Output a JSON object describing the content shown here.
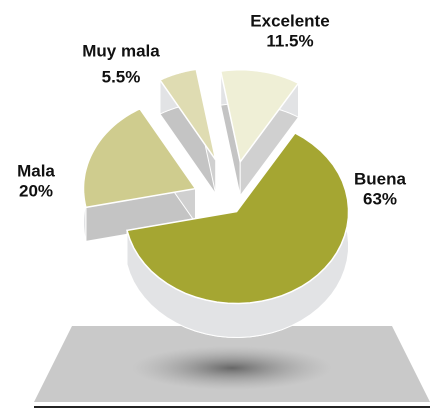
{
  "chart_data": {
    "type": "pie",
    "categories": [
      "Excelente",
      "Buena",
      "Mala",
      "Muy mala"
    ],
    "values": [
      11.5,
      63,
      20,
      5.5
    ],
    "value_labels": [
      "11.5%",
      "63%",
      "20%",
      "5.5%"
    ],
    "colors": [
      "#efefd6",
      "#a5a632",
      "#cfcc8e",
      "#dfdcb2"
    ]
  }
}
